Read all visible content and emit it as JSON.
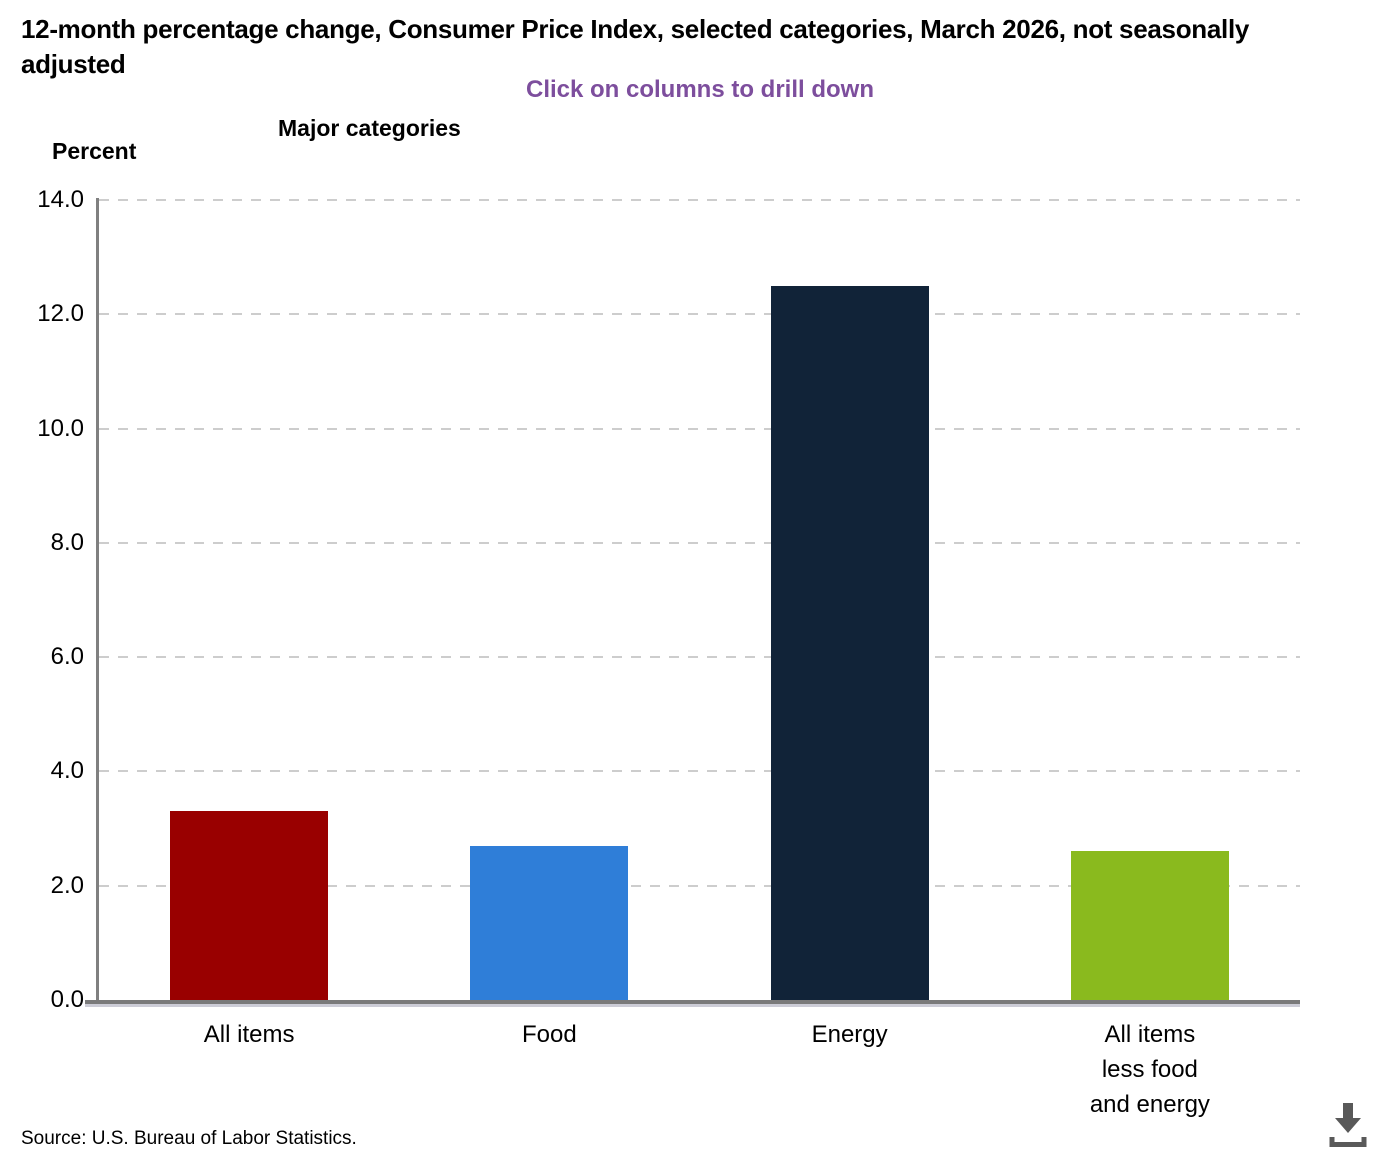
{
  "header": {
    "title": "12-month percentage change, Consumer Price Index, selected categories, March 2026, not seasonally adjusted",
    "subtitle": "Click on columns to drill down",
    "section_label": "Major categories",
    "y_axis_title": "Percent"
  },
  "chart_data": {
    "type": "bar",
    "title": "12-month percentage change, Consumer Price Index, selected categories, March 2026, not seasonally adjusted",
    "xlabel": "Major categories",
    "ylabel": "Percent",
    "ylim": [
      0,
      14
    ],
    "grid": "horizontal-dashed",
    "legend": "none",
    "categories": [
      "All items",
      "Food",
      "Energy",
      "All items less food and energy"
    ],
    "values": [
      3.3,
      2.7,
      12.5,
      2.6
    ],
    "bar_colors": [
      "#990000",
      "#2f7ed8",
      "#112338",
      "#8aba1e"
    ],
    "x_tick_label_lines": [
      [
        "All items"
      ],
      [
        "Food"
      ],
      [
        "Energy"
      ],
      [
        "All items",
        "less food",
        "and energy"
      ]
    ],
    "yticks": [
      {
        "value": 0,
        "label": "0.0"
      },
      {
        "value": 2,
        "label": "2.0"
      },
      {
        "value": 4,
        "label": "4.0"
      },
      {
        "value": 6,
        "label": "6.0"
      },
      {
        "value": 8,
        "label": "8.0"
      },
      {
        "value": 10,
        "label": "10.0"
      },
      {
        "value": 12,
        "label": "12.0"
      },
      {
        "value": 14,
        "label": "14.0"
      }
    ]
  },
  "footer": {
    "source": "Source: U.S. Bureau of Labor Statistics.",
    "download_icon": "download-icon"
  },
  "colors": {
    "subtitle_text": "#7d4e9d",
    "axis_line": "#808080",
    "baseline": "#7a7a7a",
    "gridline": "#cdcdcd",
    "icon": "#595959"
  }
}
